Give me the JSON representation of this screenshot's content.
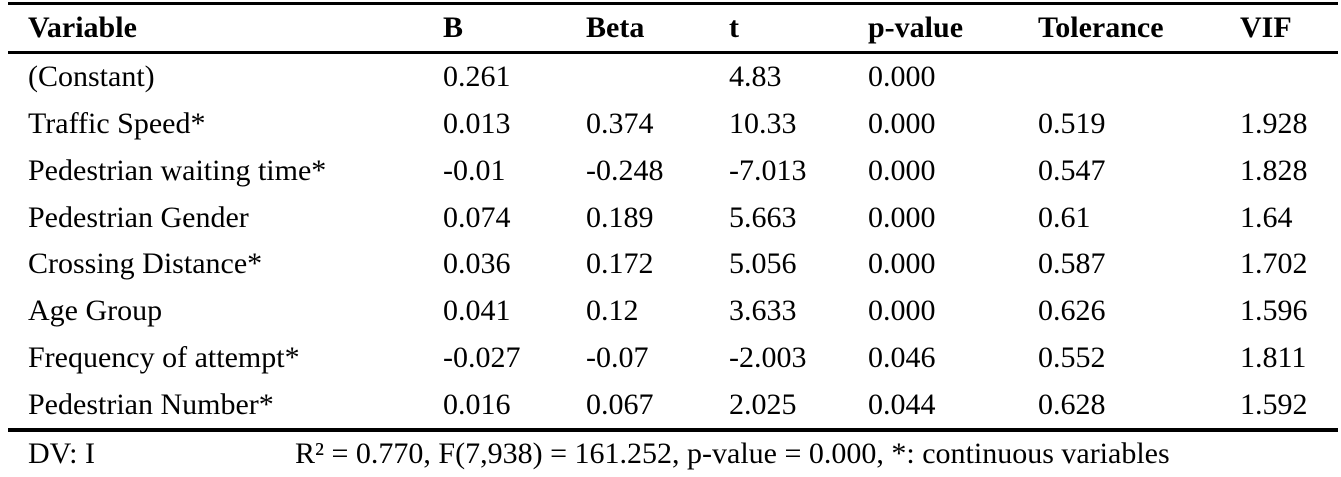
{
  "colors": {
    "text": "#000000",
    "background": "#ffffff",
    "rule": "#000000"
  },
  "table": {
    "columns": [
      "Variable",
      "B",
      "Beta",
      "t",
      "p-value",
      "Tolerance",
      "VIF"
    ],
    "rows": [
      [
        "(Constant)",
        "0.261",
        "",
        "4.83",
        "0.000",
        "",
        ""
      ],
      [
        "Traffic Speed*",
        "0.013",
        "0.374",
        "10.33",
        "0.000",
        "0.519",
        "1.928"
      ],
      [
        "Pedestrian waiting time*",
        "-0.01",
        "-0.248",
        "-7.013",
        "0.000",
        "0.547",
        "1.828"
      ],
      [
        "Pedestrian Gender",
        "0.074",
        "0.189",
        "5.663",
        "0.000",
        "0.61",
        "1.64"
      ],
      [
        "Crossing Distance*",
        "0.036",
        "0.172",
        "5.056",
        "0.000",
        "0.587",
        "1.702"
      ],
      [
        "Age Group",
        "0.041",
        "0.12",
        "3.633",
        "0.000",
        "0.626",
        "1.596"
      ],
      [
        "Frequency of attempt*",
        "-0.027",
        "-0.07",
        "-2.003",
        "0.046",
        "0.552",
        "1.811"
      ],
      [
        "Pedestrian Number*",
        "0.016",
        "0.067",
        "2.025",
        "0.044",
        "0.628",
        "1.592"
      ]
    ],
    "footnote": {
      "dv": "DV: I",
      "stats": "R² = 0.770, F(7,938) = 161.252, p-value = 0.000, *: continuous variables"
    }
  }
}
